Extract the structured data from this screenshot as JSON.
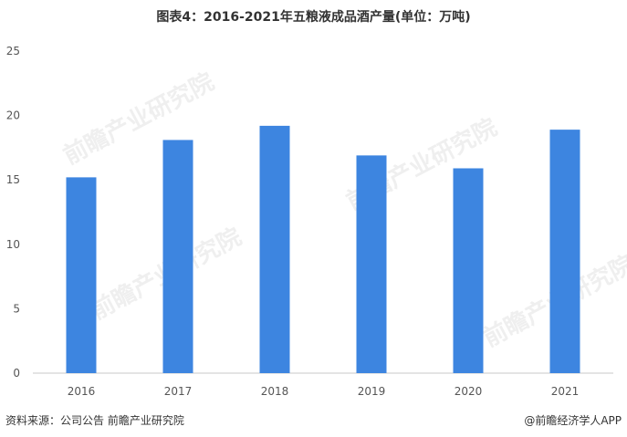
{
  "title": "图表4：2016-2021年五粮液成品酒产量(单位：万吨)",
  "watermark": "前瞻产业研究院",
  "footer": {
    "source": "资料来源：公司公告 前瞻产业研究院",
    "brand": "@前瞻经济学人APP"
  },
  "colors": {
    "bar": "#3D85E0",
    "axis": "#c8c8c8",
    "text": "#555555"
  },
  "chart_data": {
    "type": "bar",
    "title": "图表4：2016-2021年五粮液成品酒产量(单位：万吨)",
    "categories": [
      "2016",
      "2017",
      "2018",
      "2019",
      "2020",
      "2021"
    ],
    "values": [
      15.2,
      18.1,
      19.2,
      16.9,
      15.9,
      18.9
    ],
    "y_ticks": [
      "0",
      "5",
      "10",
      "15",
      "20",
      "25"
    ],
    "ylim": [
      0,
      25
    ],
    "xlabel": "",
    "ylabel": "",
    "grid": false,
    "legend": "none"
  }
}
